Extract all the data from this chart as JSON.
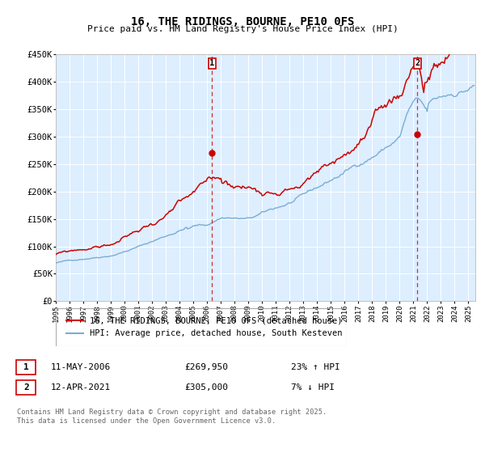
{
  "title": "16, THE RIDINGS, BOURNE, PE10 0FS",
  "subtitle": "Price paid vs. HM Land Registry's House Price Index (HPI)",
  "legend_line1": "16, THE RIDINGS, BOURNE, PE10 0FS (detached house)",
  "legend_line2": "HPI: Average price, detached house, South Kesteven",
  "annotation1_label": "1",
  "annotation1_date": "11-MAY-2006",
  "annotation1_price": "£269,950",
  "annotation1_hpi": "23% ↑ HPI",
  "annotation2_label": "2",
  "annotation2_date": "12-APR-2021",
  "annotation2_price": "£305,000",
  "annotation2_hpi": "7% ↓ HPI",
  "footer": "Contains HM Land Registry data © Crown copyright and database right 2025.\nThis data is licensed under the Open Government Licence v3.0.",
  "red_color": "#cc0000",
  "blue_color": "#7aadd4",
  "bg_color": "#ddeeff",
  "grid_color": "#ffffff",
  "ylim": [
    0,
    450000
  ],
  "yticks": [
    0,
    50000,
    100000,
    150000,
    200000,
    250000,
    300000,
    350000,
    400000,
    450000
  ],
  "sale1_x": 2006.36,
  "sale1_y": 269950,
  "sale2_x": 2021.28,
  "sale2_y": 305000,
  "xmin": 1995,
  "xmax": 2025.5
}
